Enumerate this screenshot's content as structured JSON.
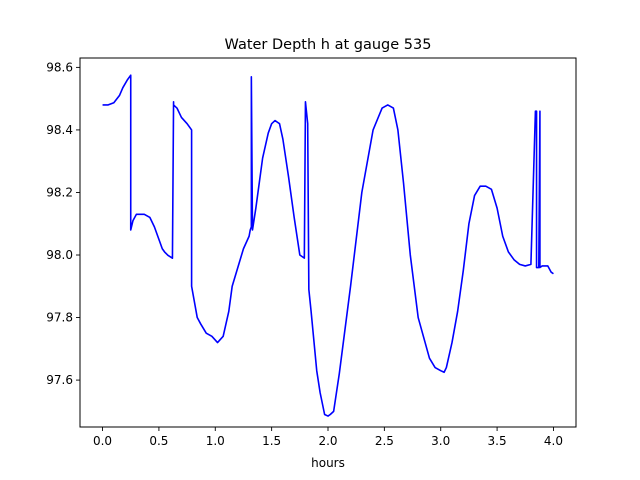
{
  "chart_data": {
    "type": "line",
    "title": "Water Depth h at gauge 535",
    "xlabel": "hours",
    "ylabel": "",
    "xlim": [
      -0.2,
      4.2
    ],
    "ylim": [
      97.45,
      98.63
    ],
    "xticks": [
      0.0,
      0.5,
      1.0,
      1.5,
      2.0,
      2.5,
      3.0,
      3.5,
      4.0
    ],
    "xtick_labels": [
      "0.0",
      "0.5",
      "1.0",
      "1.5",
      "2.0",
      "2.5",
      "3.0",
      "3.5",
      "4.0"
    ],
    "yticks": [
      97.6,
      97.8,
      98.0,
      98.2,
      98.4,
      98.6
    ],
    "ytick_labels": [
      "97.6",
      "97.8",
      "98.0",
      "98.2",
      "98.4",
      "98.6"
    ],
    "grid": false,
    "series": [
      {
        "name": "h",
        "color": "#0000ff",
        "x": [
          0.0,
          0.05,
          0.1,
          0.15,
          0.18,
          0.22,
          0.25,
          0.25,
          0.27,
          0.3,
          0.33,
          0.37,
          0.42,
          0.46,
          0.5,
          0.53,
          0.55,
          0.58,
          0.62,
          0.63,
          0.63,
          0.66,
          0.7,
          0.75,
          0.79,
          0.79,
          0.81,
          0.84,
          0.87,
          0.92,
          0.97,
          1.02,
          1.07,
          1.12,
          1.15,
          1.2,
          1.25,
          1.3,
          1.31,
          1.32,
          1.32,
          1.33,
          1.36,
          1.42,
          1.47,
          1.5,
          1.53,
          1.55,
          1.57,
          1.6,
          1.65,
          1.7,
          1.75,
          1.79,
          1.8,
          1.8,
          1.82,
          1.82,
          1.83,
          1.85,
          1.9,
          1.93,
          1.97,
          2.0,
          2.02,
          2.05,
          2.1,
          2.2,
          2.3,
          2.4,
          2.48,
          2.53,
          2.58,
          2.62,
          2.67,
          2.73,
          2.8,
          2.9,
          2.95,
          3.0,
          3.03,
          3.05,
          3.1,
          3.15,
          3.2,
          3.25,
          3.3,
          3.35,
          3.4,
          3.45,
          3.5,
          3.55,
          3.6,
          3.65,
          3.7,
          3.75,
          3.8,
          3.84,
          3.85,
          3.85,
          3.87,
          3.88,
          3.88,
          3.9,
          3.95,
          3.98,
          4.0
        ],
        "y": [
          98.48,
          98.48,
          98.487,
          98.51,
          98.535,
          98.56,
          98.575,
          98.08,
          98.11,
          98.13,
          98.13,
          98.13,
          98.12,
          98.09,
          98.05,
          98.02,
          98.01,
          97.999,
          97.99,
          98.49,
          98.48,
          98.47,
          98.44,
          98.42,
          98.4,
          97.9,
          97.86,
          97.8,
          97.78,
          97.75,
          97.74,
          97.72,
          97.74,
          97.82,
          97.9,
          97.96,
          98.02,
          98.06,
          98.08,
          98.09,
          98.57,
          98.08,
          98.15,
          98.31,
          98.39,
          98.42,
          98.43,
          98.425,
          98.42,
          98.37,
          98.25,
          98.12,
          98.0,
          97.99,
          98.49,
          98.49,
          98.42,
          98.41,
          97.89,
          97.82,
          97.63,
          97.56,
          97.49,
          97.485,
          97.49,
          97.5,
          97.62,
          97.9,
          98.2,
          98.4,
          98.47,
          98.48,
          98.47,
          98.4,
          98.23,
          98.0,
          97.8,
          97.67,
          97.64,
          97.63,
          97.625,
          97.64,
          97.72,
          97.82,
          97.95,
          98.1,
          98.19,
          98.22,
          98.22,
          98.21,
          98.15,
          98.06,
          98.01,
          97.985,
          97.97,
          97.965,
          97.97,
          98.46,
          98.46,
          97.96,
          97.96,
          98.46,
          97.96,
          97.965,
          97.965,
          97.945,
          97.94
        ]
      }
    ]
  }
}
